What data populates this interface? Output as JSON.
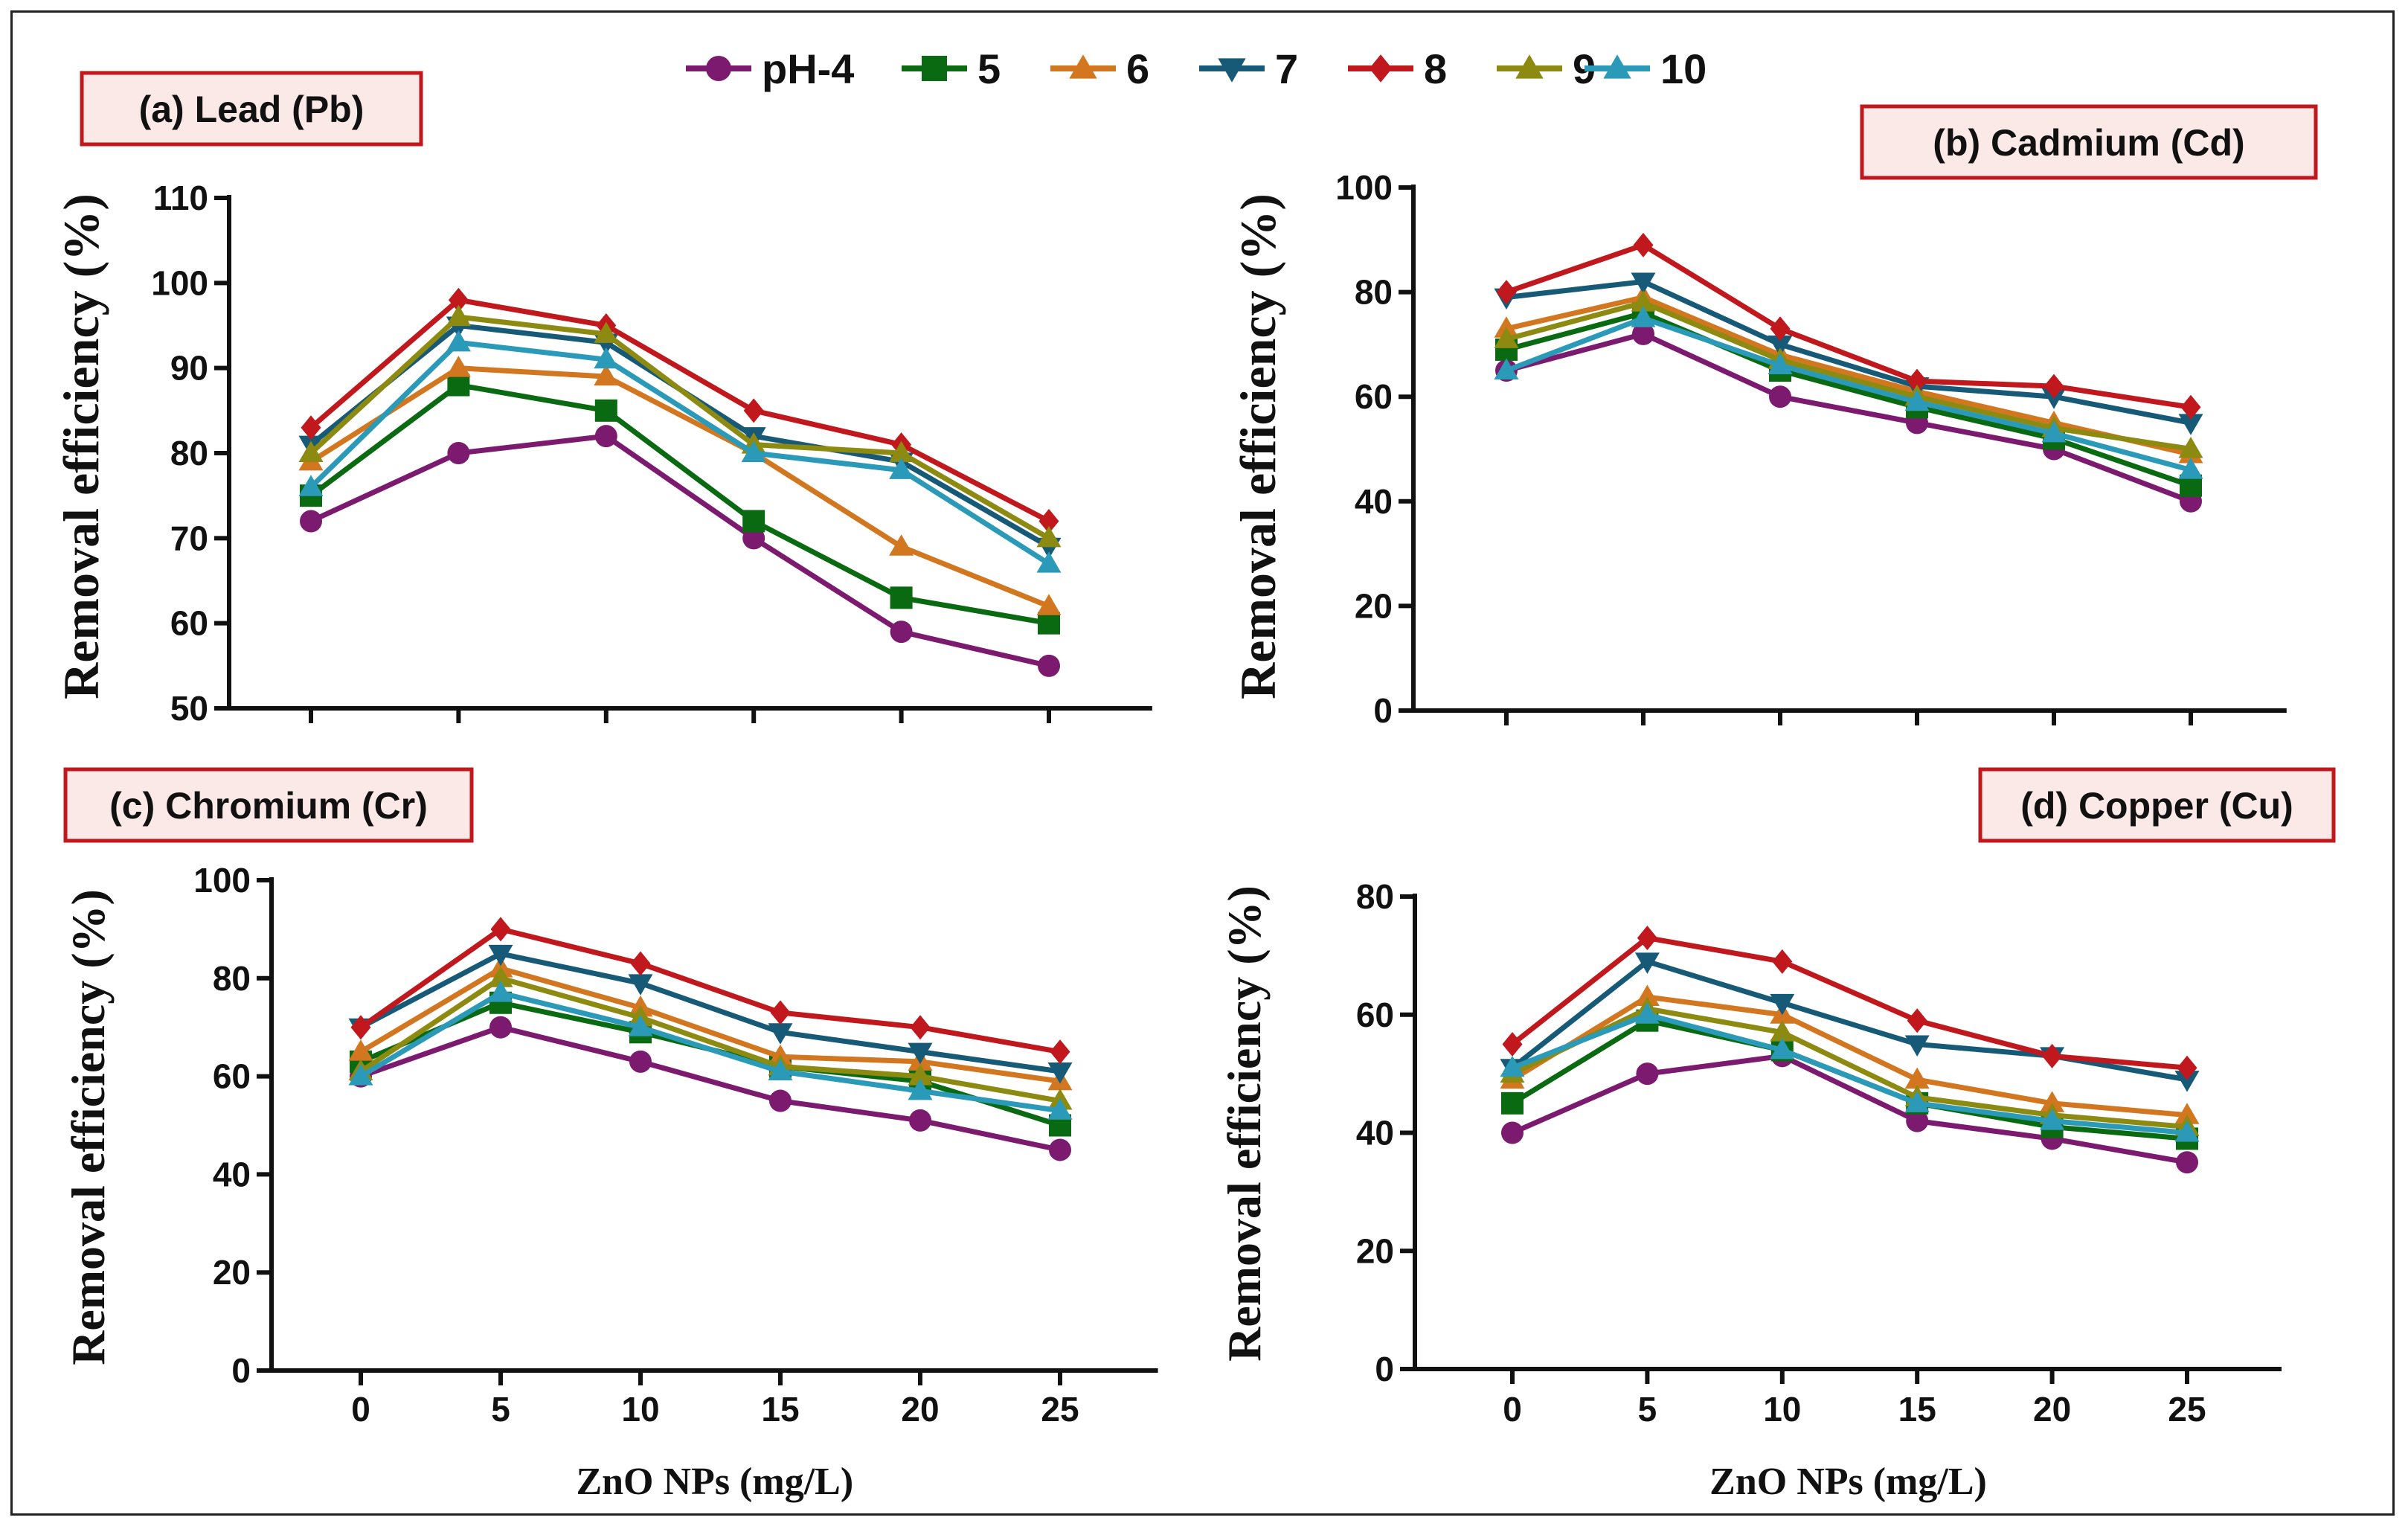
{
  "legend_series": [
    {
      "name": "pH-4",
      "color": "#7b1a6e",
      "marker": "circle"
    },
    {
      "name": "5",
      "color": "#0a6a12",
      "marker": "square"
    },
    {
      "name": "6",
      "color": "#d2771f",
      "marker": "triangle-up"
    },
    {
      "name": "7",
      "color": "#175a78",
      "marker": "triangle-down"
    },
    {
      "name": "8",
      "color": "#c0181c",
      "marker": "diamond"
    },
    {
      "name": "9",
      "color": "#8c8a10",
      "marker": "triangle-up"
    },
    {
      "name": "10",
      "color": "#2b9ab8",
      "marker": "triangle-up"
    }
  ],
  "x_axis_title": "ZnO NPs (mg/L)",
  "chart_data": [
    {
      "type": "line",
      "title": "(a) Lead (Pb)",
      "xlabel": "",
      "ylabel": "Removal efficiency (%)",
      "x": [
        0,
        5,
        10,
        15,
        20,
        25
      ],
      "x_tick_labels": [],
      "ylim": [
        50,
        110
      ],
      "yticks": [
        50,
        60,
        70,
        80,
        90,
        100,
        110
      ],
      "series": [
        {
          "name": "pH-4",
          "values": [
            72,
            80,
            82,
            70,
            59,
            55
          ]
        },
        {
          "name": "5",
          "values": [
            75,
            88,
            85,
            72,
            63,
            60
          ]
        },
        {
          "name": "6",
          "values": [
            79,
            90,
            89,
            80,
            69,
            62
          ]
        },
        {
          "name": "7",
          "values": [
            81,
            95,
            93,
            82,
            79,
            69
          ]
        },
        {
          "name": "8",
          "values": [
            83,
            98,
            95,
            85,
            81,
            72
          ]
        },
        {
          "name": "9",
          "values": [
            80,
            96,
            94,
            81,
            80,
            70
          ]
        },
        {
          "name": "10",
          "values": [
            76,
            93,
            91,
            80,
            78,
            67
          ]
        }
      ]
    },
    {
      "type": "line",
      "title": "(b) Cadmium (Cd)",
      "xlabel": "",
      "ylabel": "Removal efficiency (%)",
      "x": [
        0,
        5,
        10,
        15,
        20,
        25
      ],
      "x_tick_labels": [],
      "ylim": [
        0,
        100
      ],
      "yticks": [
        0,
        20,
        40,
        60,
        80,
        100
      ],
      "series": [
        {
          "name": "pH-4",
          "values": [
            65,
            72,
            60,
            55,
            50,
            40
          ]
        },
        {
          "name": "5",
          "values": [
            69,
            76,
            65,
            58,
            52,
            43
          ]
        },
        {
          "name": "6",
          "values": [
            73,
            79,
            68,
            61,
            55,
            49
          ]
        },
        {
          "name": "7",
          "values": [
            79,
            82,
            70,
            62,
            60,
            55
          ]
        },
        {
          "name": "8",
          "values": [
            80,
            89,
            73,
            63,
            62,
            58
          ]
        },
        {
          "name": "9",
          "values": [
            71,
            78,
            67,
            60,
            54,
            50
          ]
        },
        {
          "name": "10",
          "values": [
            65,
            75,
            66,
            59,
            53,
            46
          ]
        }
      ]
    },
    {
      "type": "line",
      "title": "(c) Chromium (Cr)",
      "xlabel": "ZnO NPs (mg/L)",
      "ylabel": "Removal efficiency (%)",
      "x": [
        0,
        5,
        10,
        15,
        20,
        25
      ],
      "x_tick_labels": [
        "0",
        "5",
        "10",
        "15",
        "20",
        "25"
      ],
      "ylim": [
        0,
        100
      ],
      "yticks": [
        0,
        20,
        40,
        60,
        80,
        100
      ],
      "series": [
        {
          "name": "pH-4",
          "values": [
            60,
            70,
            63,
            55,
            51,
            45
          ]
        },
        {
          "name": "5",
          "values": [
            63,
            75,
            69,
            62,
            59,
            50
          ]
        },
        {
          "name": "6",
          "values": [
            65,
            82,
            74,
            64,
            63,
            59
          ]
        },
        {
          "name": "7",
          "values": [
            70,
            85,
            79,
            69,
            65,
            61
          ]
        },
        {
          "name": "8",
          "values": [
            70,
            90,
            83,
            73,
            70,
            65
          ]
        },
        {
          "name": "9",
          "values": [
            61,
            80,
            72,
            62,
            60,
            55
          ]
        },
        {
          "name": "10",
          "values": [
            60,
            77,
            70,
            61,
            57,
            53
          ]
        }
      ]
    },
    {
      "type": "line",
      "title": "(d) Copper (Cu)",
      "xlabel": "ZnO NPs (mg/L)",
      "ylabel": "Removal efficiency (%)",
      "x": [
        0,
        5,
        10,
        15,
        20,
        25
      ],
      "x_tick_labels": [
        "0",
        "5",
        "10",
        "15",
        "20",
        "25"
      ],
      "ylim": [
        0,
        80
      ],
      "yticks": [
        0,
        20,
        40,
        60,
        80
      ],
      "series": [
        {
          "name": "pH-4",
          "values": [
            40,
            50,
            53,
            42,
            39,
            35
          ]
        },
        {
          "name": "5",
          "values": [
            45,
            59,
            54,
            45,
            41,
            39
          ]
        },
        {
          "name": "6",
          "values": [
            49,
            63,
            60,
            49,
            45,
            43
          ]
        },
        {
          "name": "7",
          "values": [
            51,
            69,
            62,
            55,
            53,
            49
          ]
        },
        {
          "name": "8",
          "values": [
            55,
            73,
            69,
            59,
            53,
            51
          ]
        },
        {
          "name": "9",
          "values": [
            50,
            61,
            57,
            46,
            43,
            41
          ]
        },
        {
          "name": "10",
          "values": [
            51,
            60,
            54,
            45,
            42,
            40
          ]
        }
      ]
    }
  ]
}
